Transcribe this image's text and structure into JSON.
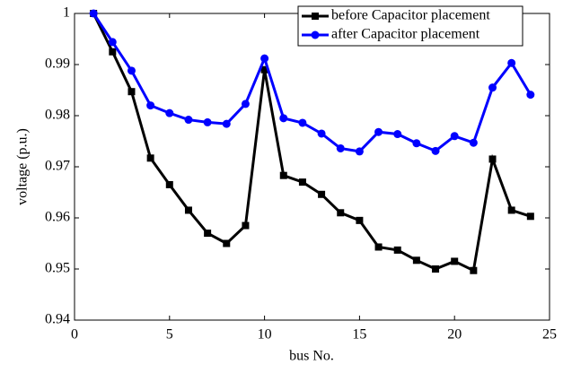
{
  "chart_data": {
    "type": "line",
    "xlabel": "bus No.",
    "ylabel": "voltage (p.u.)",
    "x": [
      1,
      2,
      3,
      4,
      5,
      6,
      7,
      8,
      9,
      10,
      11,
      12,
      13,
      14,
      15,
      16,
      17,
      18,
      19,
      20,
      21,
      22,
      23,
      24
    ],
    "series": [
      {
        "name": "before Capacitor placement",
        "color": "#000000",
        "marker": "square",
        "values": [
          1.0,
          0.9925,
          0.9847,
          0.9717,
          0.9665,
          0.9615,
          0.957,
          0.955,
          0.9585,
          0.989,
          0.9683,
          0.967,
          0.9646,
          0.961,
          0.9595,
          0.9543,
          0.9537,
          0.9517,
          0.95,
          0.9515,
          0.9497,
          0.9715,
          0.9615,
          0.9603
        ]
      },
      {
        "name": "after Capacitor placement",
        "color": "#0000ff",
        "marker": "circle",
        "values": [
          1.0,
          0.9944,
          0.9888,
          0.982,
          0.9805,
          0.9792,
          0.9787,
          0.9784,
          0.9823,
          0.9912,
          0.9795,
          0.9786,
          0.9765,
          0.9736,
          0.973,
          0.9768,
          0.9764,
          0.9746,
          0.9731,
          0.976,
          0.9747,
          0.9855,
          0.9903,
          0.9841
        ]
      }
    ],
    "xlim": [
      0,
      25
    ],
    "xticks": [
      0,
      5,
      10,
      15,
      20,
      25
    ],
    "ylim": [
      0.94,
      1
    ],
    "yticks": [
      0.94,
      0.95,
      0.96,
      0.97,
      0.98,
      0.99,
      1
    ],
    "grid": false,
    "legend": "upper right"
  }
}
